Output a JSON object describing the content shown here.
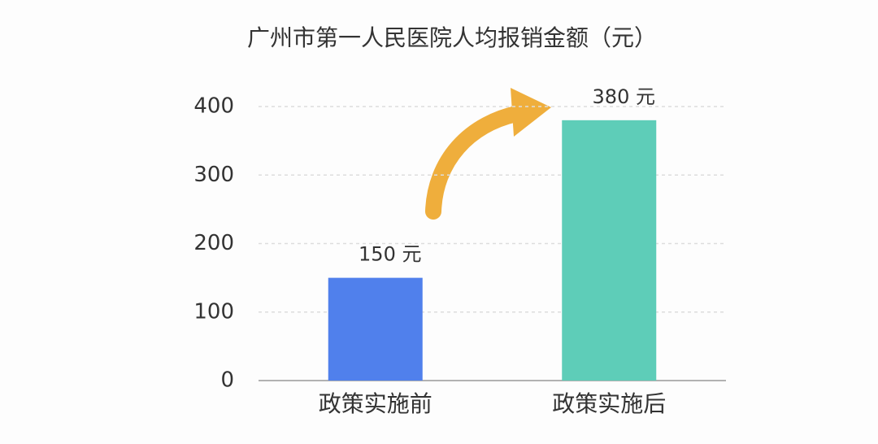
{
  "chart_data": {
    "type": "bar",
    "title": "广州市第一人民医院人均报销金额（元）",
    "categories": [
      "政策实施前",
      "政策实施后"
    ],
    "values": [
      150,
      380
    ],
    "value_labels": [
      "150 元",
      "380 元"
    ],
    "colors": [
      "#5080ec",
      "#5ecdb8"
    ],
    "ylim": [
      0,
      400
    ],
    "yticks": [
      0,
      100,
      200,
      300,
      400
    ],
    "grid": true
  }
}
